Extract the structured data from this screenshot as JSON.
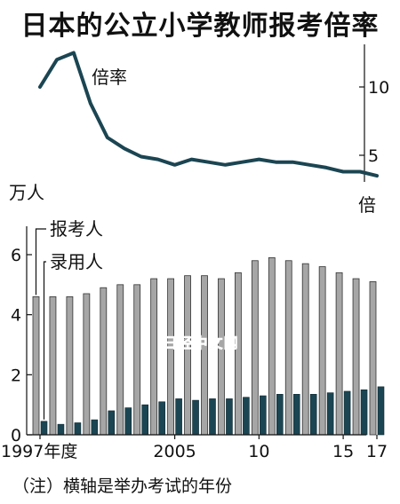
{
  "title": "日本的公立小学教师报考倍率",
  "note": "（注）横轴是举办考试的年份",
  "watermark": "日经中文网",
  "chart_data": [
    {
      "type": "line",
      "series": [
        {
          "name": "倍率",
          "color": "#1b4552",
          "x": [
            1997,
            1998,
            1999,
            2000,
            2001,
            2002,
            2003,
            2004,
            2005,
            2006,
            2007,
            2008,
            2009,
            2010,
            2011,
            2012,
            2013,
            2014,
            2015,
            2016,
            2017
          ],
          "values": [
            10.0,
            12.0,
            12.5,
            8.8,
            6.3,
            5.5,
            4.9,
            4.7,
            4.3,
            4.7,
            4.5,
            4.3,
            4.5,
            4.7,
            4.5,
            4.5,
            4.3,
            4.1,
            3.8,
            3.8,
            3.5
          ]
        }
      ],
      "ylim": [
        3,
        13
      ],
      "yticks": [
        "5",
        "10"
      ],
      "yunit": "倍"
    },
    {
      "type": "bar",
      "yunit": "万人",
      "ylim": [
        0,
        6.5
      ],
      "yticks": [
        "0",
        "2",
        "4",
        "6"
      ],
      "x": [
        1997,
        1998,
        1999,
        2000,
        2001,
        2002,
        2003,
        2004,
        2005,
        2006,
        2007,
        2008,
        2009,
        2010,
        2011,
        2012,
        2013,
        2014,
        2015,
        2016,
        2017
      ],
      "xticks": {
        "1997": "1997年度",
        "2005": "2005",
        "2010": "10",
        "2015": "15",
        "2017": "17"
      },
      "series": [
        {
          "name": "报考人",
          "color": "#a6a6a6",
          "values": [
            4.6,
            4.6,
            4.6,
            4.7,
            4.9,
            5.0,
            5.0,
            5.2,
            5.2,
            5.3,
            5.3,
            5.2,
            5.4,
            5.8,
            5.9,
            5.8,
            5.7,
            5.6,
            5.4,
            5.2,
            5.1
          ]
        },
        {
          "name": "录用人",
          "color": "#1b4552",
          "values": [
            0.45,
            0.35,
            0.4,
            0.5,
            0.8,
            0.9,
            1.0,
            1.1,
            1.2,
            1.15,
            1.2,
            1.2,
            1.25,
            1.3,
            1.35,
            1.35,
            1.35,
            1.4,
            1.45,
            1.5,
            1.6
          ]
        }
      ]
    }
  ]
}
